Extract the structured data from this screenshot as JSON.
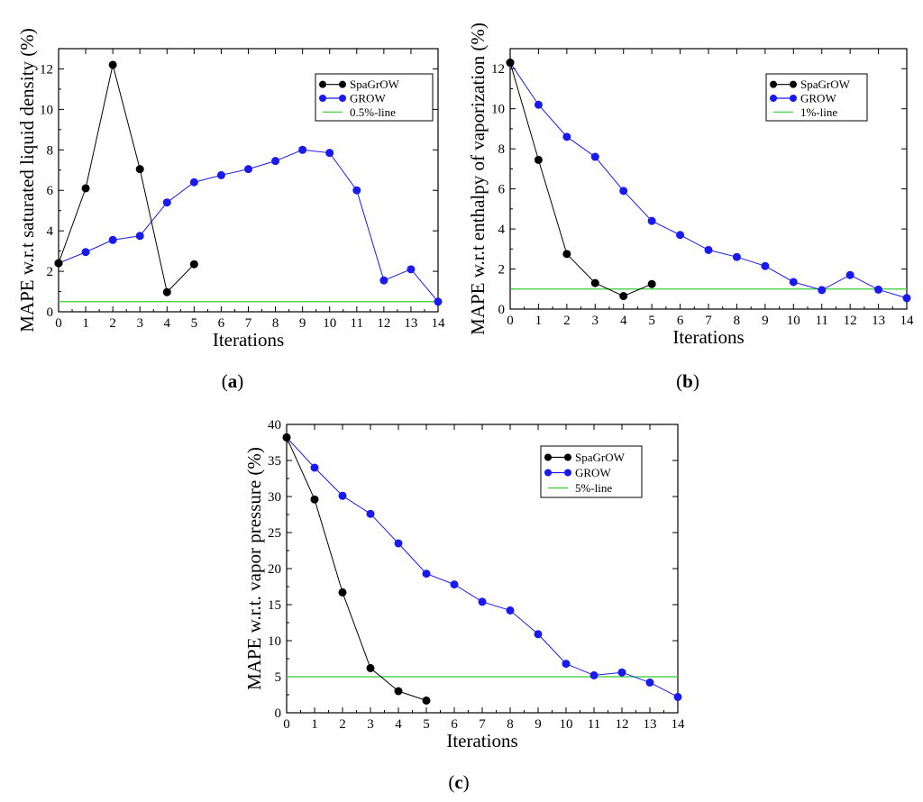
{
  "chart_data": [
    {
      "type": "line",
      "panel_label": "a",
      "xlabel": "Iterations",
      "ylabel": "MAPE w.r.t saturated liquid density (%)",
      "xlim": [
        0,
        14
      ],
      "ylim": [
        0,
        13
      ],
      "xticks": [
        0,
        1,
        2,
        3,
        4,
        5,
        6,
        7,
        8,
        9,
        10,
        11,
        12,
        13,
        14
      ],
      "yticks": [
        0,
        2,
        4,
        6,
        8,
        10,
        12
      ],
      "legend_position": "top-right",
      "series": [
        {
          "name": "SpaGrOW",
          "color": "#000000",
          "marker": "circle",
          "x": [
            0,
            1,
            2,
            3,
            4,
            5
          ],
          "y": [
            2.4,
            6.1,
            12.2,
            7.05,
            0.97,
            2.35
          ]
        },
        {
          "name": "GROW",
          "color": "#1a1aee",
          "marker": "circle",
          "x": [
            0,
            1,
            2,
            3,
            4,
            5,
            6,
            7,
            8,
            9,
            10,
            11,
            12,
            13,
            14
          ],
          "y": [
            2.4,
            2.95,
            3.55,
            3.75,
            5.4,
            6.4,
            6.75,
            7.05,
            7.45,
            8.0,
            7.85,
            6.0,
            1.55,
            2.1,
            0.5
          ]
        }
      ],
      "reference_line": {
        "name": "0.5%-line",
        "color": "#33cc33",
        "y": 0.5
      }
    },
    {
      "type": "line",
      "panel_label": "b",
      "xlabel": "Iterations",
      "ylabel": "MAPE w.r.t enthalpy of vaporization (%)",
      "xlim": [
        0,
        14
      ],
      "ylim": [
        0,
        13
      ],
      "xticks": [
        0,
        1,
        2,
        3,
        4,
        5,
        6,
        7,
        8,
        9,
        10,
        11,
        12,
        13,
        14
      ],
      "yticks": [
        0,
        2,
        4,
        6,
        8,
        10,
        12
      ],
      "legend_position": "top-right",
      "series": [
        {
          "name": "SpaGrOW",
          "color": "#000000",
          "marker": "circle",
          "x": [
            0,
            1,
            2,
            3,
            4,
            5
          ],
          "y": [
            12.3,
            7.45,
            2.75,
            1.3,
            0.65,
            1.25
          ]
        },
        {
          "name": "GROW",
          "color": "#1a1aee",
          "marker": "circle",
          "x": [
            0,
            1,
            2,
            3,
            4,
            5,
            6,
            7,
            8,
            9,
            10,
            11,
            12,
            13,
            14
          ],
          "y": [
            12.3,
            10.2,
            8.6,
            7.6,
            5.9,
            4.4,
            3.7,
            2.95,
            2.6,
            2.15,
            1.35,
            0.95,
            1.7,
            0.97,
            0.55
          ]
        }
      ],
      "reference_line": {
        "name": "1%-line",
        "color": "#33cc33",
        "y": 1.0
      }
    },
    {
      "type": "line",
      "panel_label": "c",
      "xlabel": "Iterations",
      "ylabel": "MAPE w.r.t. vapor pressure (%)",
      "xlim": [
        0,
        14
      ],
      "ylim": [
        0,
        40
      ],
      "xticks": [
        0,
        1,
        2,
        3,
        4,
        5,
        6,
        7,
        8,
        9,
        10,
        11,
        12,
        13,
        14
      ],
      "yticks": [
        0,
        5,
        10,
        15,
        20,
        25,
        30,
        35,
        40
      ],
      "legend_position": "top-right",
      "series": [
        {
          "name": "SpaGrOW",
          "color": "#000000",
          "marker": "circle",
          "x": [
            0,
            1,
            2,
            3,
            4,
            5
          ],
          "y": [
            38.2,
            29.6,
            16.7,
            6.2,
            3.0,
            1.7
          ]
        },
        {
          "name": "GROW",
          "color": "#1a1aee",
          "marker": "circle",
          "x": [
            0,
            1,
            2,
            3,
            4,
            5,
            6,
            7,
            8,
            9,
            10,
            11,
            12,
            13,
            14
          ],
          "y": [
            38.2,
            34.0,
            30.1,
            27.6,
            23.5,
            19.3,
            17.8,
            15.4,
            14.2,
            10.9,
            6.8,
            5.2,
            5.6,
            4.2,
            2.2
          ]
        }
      ],
      "reference_line": {
        "name": "5%-line",
        "color": "#33cc33",
        "y": 5.0
      }
    }
  ]
}
